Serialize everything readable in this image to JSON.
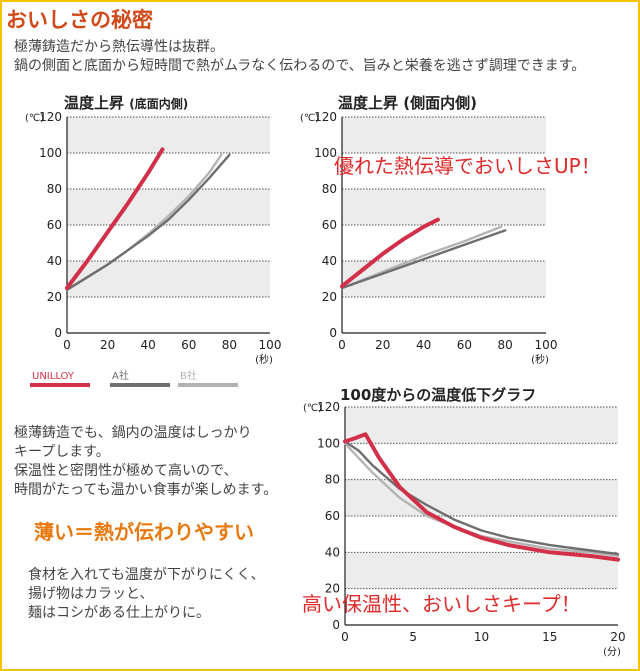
{
  "header": {
    "title": "おいしさの秘密",
    "intro_line1": "極薄鋳造だから熱伝導性は抜群。",
    "intro_line2": "鍋の側面と底面から短時間で熱がムラなく伝わるので、旨みと栄養を逃さず調理できます。"
  },
  "legend": {
    "items": [
      "UNILLOY",
      "A社",
      "B社"
    ]
  },
  "text_block": {
    "para1_line1": "極薄鋳造でも、鍋内の温度はしっかり",
    "para1_line2": "キープします。",
    "para1_line3": "保温性と密閉性が極めて高いので、",
    "para1_line4": "時間がたっても温かい食事が楽しめます。",
    "highlight": "薄い＝熱が伝わりやすい",
    "para2_line1": "食材を入れても温度が下がりにくく、",
    "para2_line2": "揚げ物はカラッと、",
    "para2_line3": "麺はコシがある仕上がりに。"
  },
  "colors": {
    "unilloy": "#d2304a",
    "a": "#6e6e6e",
    "b": "#b4b4b4",
    "title": "#d04a1a"
  },
  "chart_data": [
    {
      "type": "line",
      "title": "温度上昇",
      "subtitle": "(底面内側)",
      "y_unit": "(℃)",
      "x_unit": "(秒)",
      "xlim": [
        0,
        100
      ],
      "ylim": [
        0,
        120
      ],
      "xticks": [
        0,
        20,
        40,
        60,
        80,
        100
      ],
      "yticks": [
        0,
        20,
        40,
        60,
        80,
        100,
        120
      ],
      "grid": true,
      "series": [
        {
          "name": "UNILLOY",
          "color": "#d2304a",
          "x": [
            0,
            10,
            20,
            30,
            40,
            47
          ],
          "y": [
            25,
            40,
            56,
            72,
            89,
            102
          ]
        },
        {
          "name": "A社",
          "color": "#6e6e6e",
          "x": [
            0,
            10,
            20,
            30,
            40,
            50,
            60,
            70,
            80
          ],
          "y": [
            24,
            31,
            38,
            46,
            54,
            63,
            74,
            86,
            99
          ]
        },
        {
          "name": "B社",
          "color": "#b4b4b4",
          "x": [
            0,
            10,
            20,
            30,
            40,
            50,
            60,
            70,
            76
          ],
          "y": [
            24,
            31,
            38,
            46,
            55,
            65,
            76,
            89,
            99
          ]
        }
      ]
    },
    {
      "type": "line",
      "title": "温度上昇",
      "subtitle": "(側面内側)",
      "annotation": "優れた熱伝導でおいしさUP！",
      "y_unit": "(℃)",
      "x_unit": "(秒)",
      "xlim": [
        0,
        100
      ],
      "ylim": [
        0,
        120
      ],
      "xticks": [
        0,
        20,
        40,
        60,
        80,
        100
      ],
      "yticks": [
        0,
        20,
        40,
        60,
        80,
        100,
        120
      ],
      "grid": true,
      "series": [
        {
          "name": "UNILLOY",
          "color": "#d2304a",
          "x": [
            0,
            10,
            20,
            30,
            40,
            47
          ],
          "y": [
            26,
            35,
            44,
            52,
            59,
            63
          ]
        },
        {
          "name": "A社",
          "color": "#6e6e6e",
          "x": [
            0,
            20,
            40,
            60,
            80
          ],
          "y": [
            25,
            33,
            41,
            49,
            57
          ]
        },
        {
          "name": "B社",
          "color": "#b4b4b4",
          "x": [
            0,
            20,
            40,
            60,
            78
          ],
          "y": [
            25,
            34,
            43,
            51,
            59
          ]
        }
      ]
    },
    {
      "type": "line",
      "title": "100度からの温度低下グラフ",
      "annotation": "高い保温性、おいしさキープ！",
      "y_unit": "(℃)",
      "x_unit": "(分)",
      "xlim": [
        0,
        20
      ],
      "ylim": [
        0,
        120
      ],
      "xticks": [
        0,
        5,
        10,
        15,
        20
      ],
      "yticks": [
        0,
        20,
        40,
        60,
        80,
        100,
        120
      ],
      "grid": true,
      "series": [
        {
          "name": "UNILLOY",
          "color": "#d2304a",
          "x": [
            0,
            0.8,
            1.5,
            2.5,
            4,
            6,
            8,
            10,
            12,
            15,
            18,
            20
          ],
          "y": [
            101,
            103,
            105,
            92,
            76,
            62,
            54,
            48,
            44,
            40,
            38,
            36
          ]
        },
        {
          "name": "A社",
          "color": "#6e6e6e",
          "x": [
            0,
            1,
            2,
            4,
            6,
            8,
            10,
            12,
            15,
            18,
            20
          ],
          "y": [
            101,
            96,
            88,
            75,
            66,
            58,
            52,
            48,
            44,
            41,
            39
          ]
        },
        {
          "name": "B社",
          "color": "#b4b4b4",
          "x": [
            0,
            1,
            2,
            3,
            4,
            6,
            8,
            10,
            12,
            15,
            18,
            20
          ],
          "y": [
            100,
            92,
            84,
            77,
            70,
            60,
            54,
            49,
            46,
            42,
            40,
            38
          ]
        }
      ]
    }
  ]
}
